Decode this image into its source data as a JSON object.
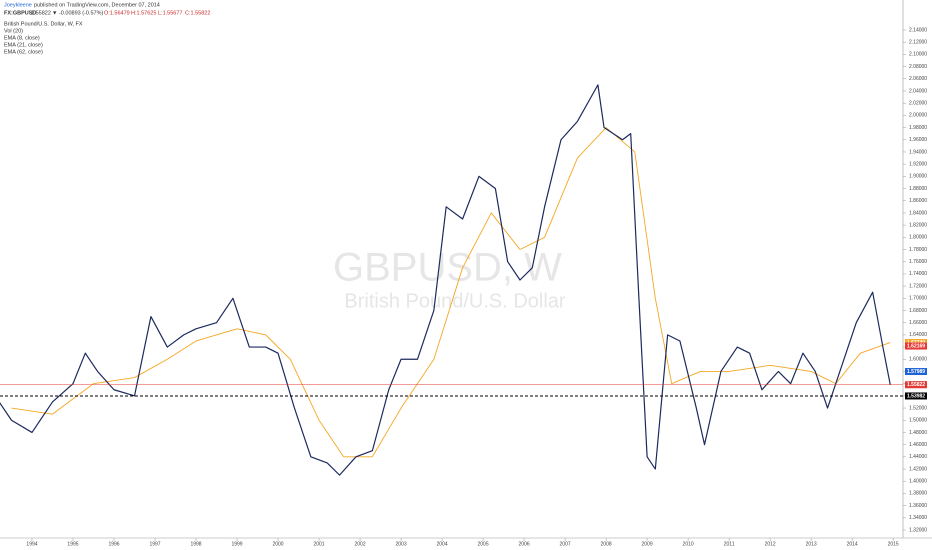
{
  "header": {
    "author": "Joeykleene",
    "published": "published on TradingView.com, December 07, 2014",
    "symbol": "FX:GBPUSD",
    "last": "1.55822",
    "change": "▼ -0.00893 (-0.57%)",
    "ohlc": [
      "O:1.56479",
      "H:1.57625",
      "L:1.55677",
      "C:1.55822"
    ]
  },
  "chart_data": {
    "type": "line",
    "watermark": [
      "GBPUSD, W",
      "British Pound/U.S. Dollar"
    ],
    "indicators": [
      "Vol (20)",
      "EMA (8, close)",
      "EMA (21, close)"
    ],
    "xlim": [
      1993.22,
      2015.24
    ],
    "xticks": [
      1994,
      1995,
      1996,
      1997,
      1998,
      1999,
      2000,
      2001,
      2002,
      2003,
      2004,
      2005,
      2006,
      2007,
      2008,
      2009,
      2010,
      2011,
      2012,
      2013,
      2014,
      2015
    ],
    "ylim": [
      1.32,
      2.14
    ],
    "yticks": [
      {
        "value": 1.32,
        "label": "1.32000"
      },
      {
        "value": 1.34,
        "label": "1.34000"
      },
      {
        "value": 1.36,
        "label": "1.36000"
      },
      {
        "value": 1.38,
        "label": "1.38000"
      },
      {
        "value": 1.4,
        "label": "1.40000"
      },
      {
        "value": 1.42,
        "label": "1.42000"
      },
      {
        "value": 1.44,
        "label": "1.44000"
      },
      {
        "value": 1.46,
        "label": "1.46000"
      },
      {
        "value": 1.48,
        "label": "1.48000"
      },
      {
        "value": 1.5,
        "label": "1.50000"
      },
      {
        "value": 1.52,
        "label": "1.52000"
      },
      {
        "value": 1.54,
        "label": "1.54000"
      },
      {
        "value": 1.56,
        "label": "1.56000"
      },
      {
        "value": 1.58,
        "label": "1.58000"
      },
      {
        "value": 1.6,
        "label": "1.60000"
      },
      {
        "value": 1.62,
        "label": "1.62000"
      },
      {
        "value": 1.64,
        "label": "1.64000"
      },
      {
        "value": 1.66,
        "label": "1.66000"
      },
      {
        "value": 1.68,
        "label": "1.68000"
      },
      {
        "value": 1.7,
        "label": "1.70000"
      },
      {
        "value": 1.72,
        "label": "1.72000"
      },
      {
        "value": 1.74,
        "label": "1.74000"
      },
      {
        "value": 1.76,
        "label": "1.76000"
      },
      {
        "value": 1.78,
        "label": "1.78000"
      },
      {
        "value": 1.8,
        "label": "1.80000"
      },
      {
        "value": 1.82,
        "label": "1.82000"
      },
      {
        "value": 1.84,
        "label": "1.84000"
      },
      {
        "value": 1.86,
        "label": "1.86000"
      },
      {
        "value": 1.88,
        "label": "1.88000"
      },
      {
        "value": 1.9,
        "label": "1.90000"
      },
      {
        "value": 1.92,
        "label": "1.92000"
      },
      {
        "value": 1.94,
        "label": "1.94000"
      },
      {
        "value": 1.96,
        "label": "1.96000"
      },
      {
        "value": 1.98,
        "label": "1.98000"
      },
      {
        "value": 2.0,
        "label": "2.00000"
      },
      {
        "value": 2.02,
        "label": "2.02000"
      },
      {
        "value": 2.04,
        "label": "2.04000"
      },
      {
        "value": 2.06,
        "label": "2.06000"
      },
      {
        "value": 2.08,
        "label": "2.08000"
      },
      {
        "value": 2.1,
        "label": "2.10000"
      },
      {
        "value": 2.12,
        "label": "2.12000"
      },
      {
        "value": 2.14,
        "label": "2.14000"
      }
    ],
    "series": [
      {
        "name": "British Pound/U.S. Dollar, W, FX",
        "color": "#1c2a5e",
        "x": [
          1993.2,
          1993.5,
          1994.0,
          1994.5,
          1995.0,
          1995.3,
          1995.6,
          1996.0,
          1996.5,
          1996.9,
          1997.3,
          1997.7,
          1998.0,
          1998.5,
          1998.9,
          1999.3,
          1999.7,
          2000.0,
          2000.4,
          2000.8,
          2001.2,
          2001.5,
          2001.9,
          2002.3,
          2002.7,
          2003.0,
          2003.4,
          2003.8,
          2004.1,
          2004.5,
          2004.9,
          2005.3,
          2005.6,
          2005.9,
          2006.2,
          2006.5,
          2006.9,
          2007.3,
          2007.8,
          2007.95,
          2008.4,
          2008.6,
          2008.8,
          2009.0,
          2009.2,
          2009.5,
          2009.8,
          2010.2,
          2010.4,
          2010.8,
          2011.2,
          2011.5,
          2011.8,
          2012.2,
          2012.5,
          2012.8,
          2013.1,
          2013.4,
          2013.8,
          2014.1,
          2014.5,
          2014.75,
          2014.93
        ],
        "values": [
          1.53,
          1.5,
          1.48,
          1.53,
          1.56,
          1.61,
          1.58,
          1.55,
          1.54,
          1.67,
          1.62,
          1.64,
          1.65,
          1.66,
          1.7,
          1.62,
          1.62,
          1.61,
          1.52,
          1.44,
          1.43,
          1.41,
          1.44,
          1.45,
          1.55,
          1.6,
          1.6,
          1.68,
          1.85,
          1.83,
          1.9,
          1.88,
          1.76,
          1.73,
          1.75,
          1.85,
          1.96,
          1.99,
          2.05,
          1.98,
          1.96,
          1.97,
          1.7,
          1.44,
          1.42,
          1.64,
          1.63,
          1.52,
          1.46,
          1.58,
          1.62,
          1.61,
          1.55,
          1.58,
          1.56,
          1.61,
          1.58,
          1.52,
          1.6,
          1.66,
          1.71,
          1.62,
          1.558
        ]
      },
      {
        "name": "EMA (62, close)",
        "color": "#f5a623",
        "x": [
          1993.5,
          1994.5,
          1995.5,
          1996.5,
          1997.3,
          1998.0,
          1999.0,
          1999.7,
          2000.3,
          2001.0,
          2001.6,
          2002.3,
          2003.0,
          2003.8,
          2004.5,
          2005.2,
          2005.9,
          2006.5,
          2007.3,
          2008.0,
          2008.7,
          2009.2,
          2009.6,
          2010.3,
          2011.0,
          2012.0,
          2013.0,
          2013.6,
          2014.2,
          2014.93
        ],
        "values": [
          1.52,
          1.51,
          1.56,
          1.57,
          1.6,
          1.63,
          1.65,
          1.64,
          1.6,
          1.5,
          1.44,
          1.44,
          1.52,
          1.6,
          1.75,
          1.84,
          1.78,
          1.8,
          1.93,
          1.98,
          1.94,
          1.7,
          1.56,
          1.58,
          1.58,
          1.59,
          1.58,
          1.56,
          1.61,
          1.6274
        ]
      }
    ],
    "price_labels": [
      {
        "value": 1.6274,
        "label": "1.62740",
        "color": "#f5a623"
      },
      {
        "value": 1.62169,
        "label": "1.62169",
        "color": "#e53935"
      },
      {
        "value": 1.57989,
        "label": "1.57989",
        "color": "#1e63d6"
      },
      {
        "value": 1.55822,
        "label": "1.55822",
        "color": "#e53935",
        "line": "solid"
      },
      {
        "value": 1.53982,
        "label": "1.53982",
        "color": "#000000",
        "line": "dashed"
      }
    ]
  }
}
